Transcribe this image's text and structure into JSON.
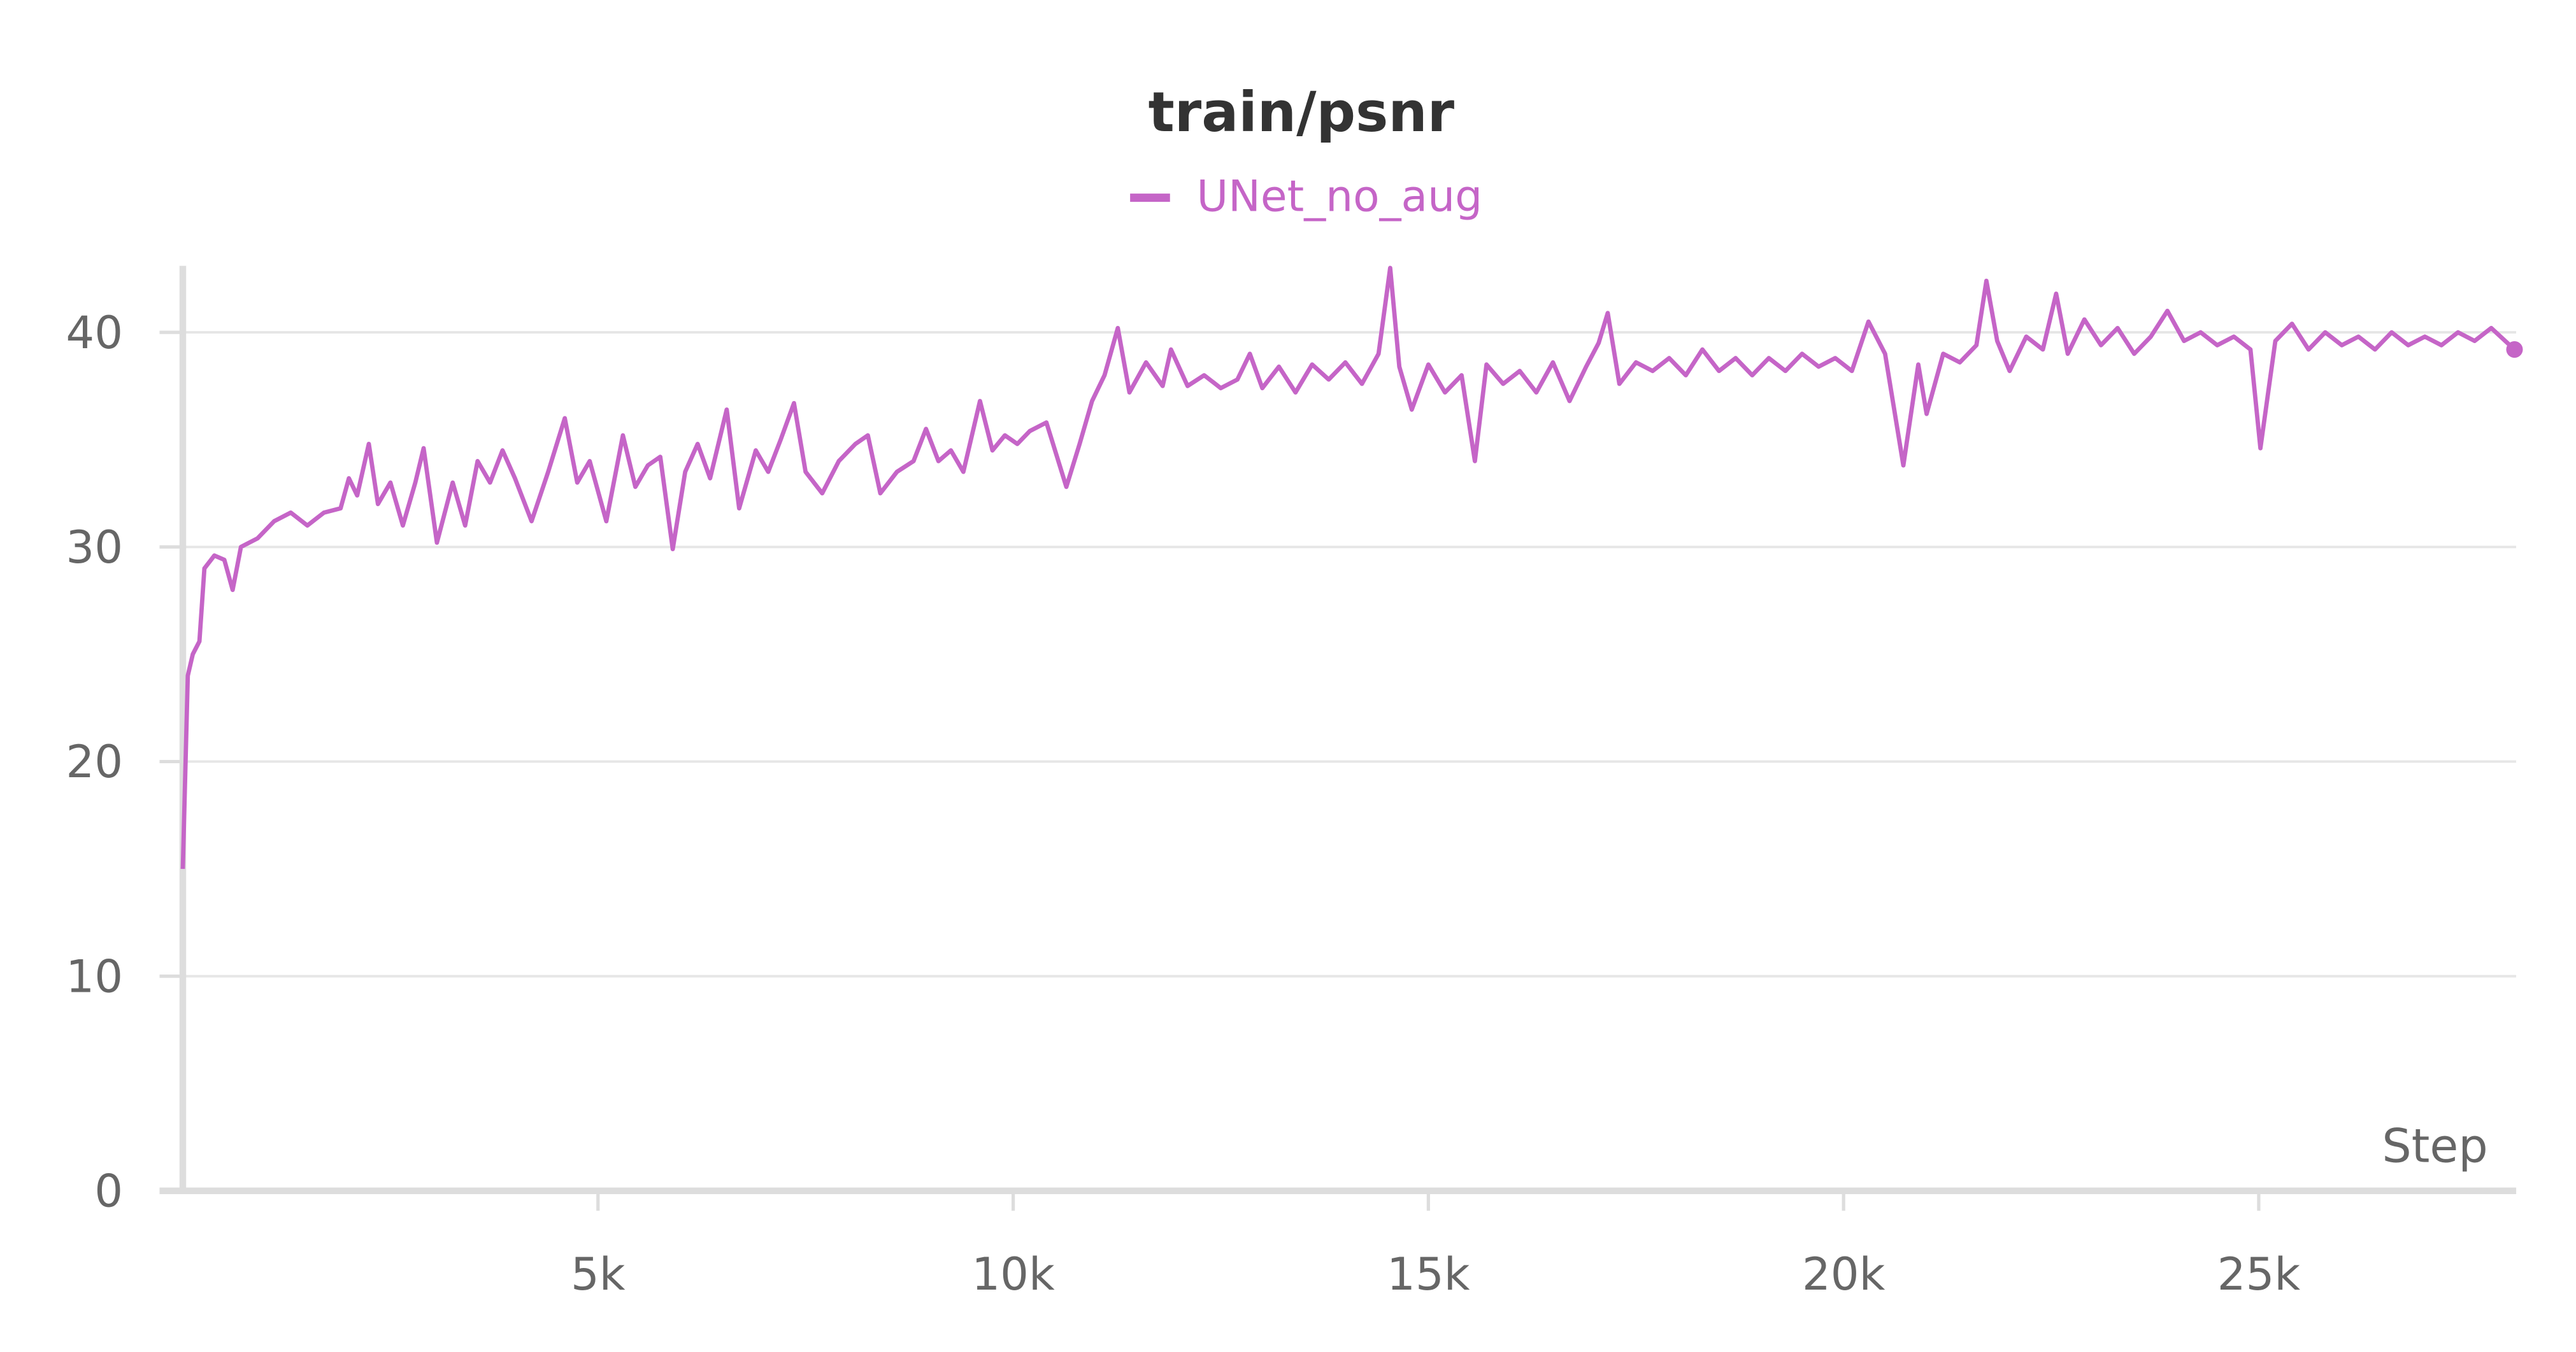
{
  "chart_data": {
    "type": "line",
    "title": "train/psnr",
    "x_label": "Step",
    "xlim": [
      0,
      28100
    ],
    "ylim": [
      0,
      43.1
    ],
    "xticks": [
      {
        "value": 5000,
        "label": "5k"
      },
      {
        "value": 10000,
        "label": "10k"
      },
      {
        "value": 15000,
        "label": "15k"
      },
      {
        "value": 20000,
        "label": "20k"
      },
      {
        "value": 25000,
        "label": "25k"
      }
    ],
    "yticks": [
      0,
      10,
      20,
      30,
      40
    ],
    "grid": true,
    "legend": "top",
    "x": [
      0,
      60,
      120,
      200,
      260,
      380,
      500,
      600,
      700,
      900,
      1100,
      1300,
      1500,
      1700,
      1900,
      2000,
      2100,
      2240,
      2350,
      2500,
      2650,
      2800,
      2900,
      3060,
      3250,
      3400,
      3550,
      3700,
      3850,
      4000,
      4200,
      4400,
      4600,
      4750,
      4900,
      5100,
      5300,
      5450,
      5600,
      5750,
      5900,
      6050,
      6200,
      6350,
      6550,
      6700,
      6900,
      7050,
      7200,
      7360,
      7500,
      7700,
      7900,
      8100,
      8250,
      8400,
      8600,
      8800,
      8950,
      9100,
      9250,
      9400,
      9600,
      9750,
      9900,
      10050,
      10200,
      10400,
      10640,
      10800,
      10950,
      11100,
      11260,
      11400,
      11600,
      11800,
      11900,
      12100,
      12300,
      12500,
      12700,
      12850,
      13000,
      13200,
      13400,
      13600,
      13800,
      14000,
      14200,
      14400,
      14540,
      14650,
      14800,
      15000,
      15200,
      15400,
      15560,
      15700,
      15900,
      16100,
      16300,
      16500,
      16700,
      16900,
      17050,
      17160,
      17300,
      17500,
      17700,
      17900,
      18100,
      18300,
      18500,
      18700,
      18900,
      19100,
      19300,
      19500,
      19700,
      19900,
      20100,
      20300,
      20500,
      20720,
      20900,
      21000,
      21200,
      21400,
      21600,
      21720,
      21850,
      22000,
      22200,
      22400,
      22560,
      22700,
      22900,
      23100,
      23300,
      23500,
      23700,
      23900,
      24100,
      24300,
      24500,
      24700,
      24900,
      25020,
      25200,
      25400,
      25600,
      25800,
      26000,
      26200,
      26400,
      26600,
      26800,
      27000,
      27200,
      27400,
      27600,
      27800,
      28080
    ],
    "series": [
      {
        "name": "UNet_no_aug",
        "color": "#c565c7",
        "values": [
          15,
          24,
          25,
          25.6,
          29,
          29.6,
          29.4,
          28,
          30,
          30.4,
          31.2,
          31.6,
          31,
          31.6,
          31.8,
          33.2,
          32.4,
          34.8,
          32,
          33,
          31,
          33,
          34.6,
          30.2,
          33,
          31,
          34,
          33,
          34.5,
          33.2,
          31.2,
          33.5,
          36,
          33,
          34,
          31.2,
          35.2,
          32.8,
          33.8,
          34.2,
          29.9,
          33.5,
          34.8,
          33.2,
          36.4,
          31.8,
          34.5,
          33.5,
          35,
          36.7,
          33.5,
          32.5,
          34,
          34.8,
          35.2,
          32.5,
          33.5,
          34,
          35.5,
          34,
          34.5,
          33.5,
          36.8,
          34.5,
          35.2,
          34.8,
          35.4,
          35.8,
          32.8,
          34.8,
          36.8,
          38,
          40.2,
          37.2,
          38.6,
          37.5,
          39.2,
          37.5,
          38,
          37.4,
          37.8,
          39,
          37.4,
          38.4,
          37.2,
          38.5,
          37.8,
          38.6,
          37.6,
          39,
          43,
          38.4,
          36.4,
          38.5,
          37.2,
          38,
          34,
          38.5,
          37.6,
          38.2,
          37.2,
          38.6,
          36.8,
          38.4,
          39.5,
          40.9,
          37.6,
          38.6,
          38.2,
          38.8,
          38,
          39.2,
          38.2,
          38.8,
          38,
          38.8,
          38.2,
          39,
          38.4,
          38.8,
          38.2,
          40.5,
          39,
          33.8,
          38.5,
          36.2,
          39,
          38.6,
          39.4,
          42.4,
          39.6,
          38.2,
          39.8,
          39.2,
          41.8,
          39,
          40.6,
          39.4,
          40.2,
          39,
          39.8,
          41,
          39.6,
          40,
          39.4,
          39.8,
          39.2,
          34.6,
          39.6,
          40.4,
          39.2,
          40,
          39.4,
          39.8,
          39.2,
          40,
          39.4,
          39.8,
          39.4,
          40,
          39.6,
          40.2,
          39.2
        ]
      }
    ]
  }
}
